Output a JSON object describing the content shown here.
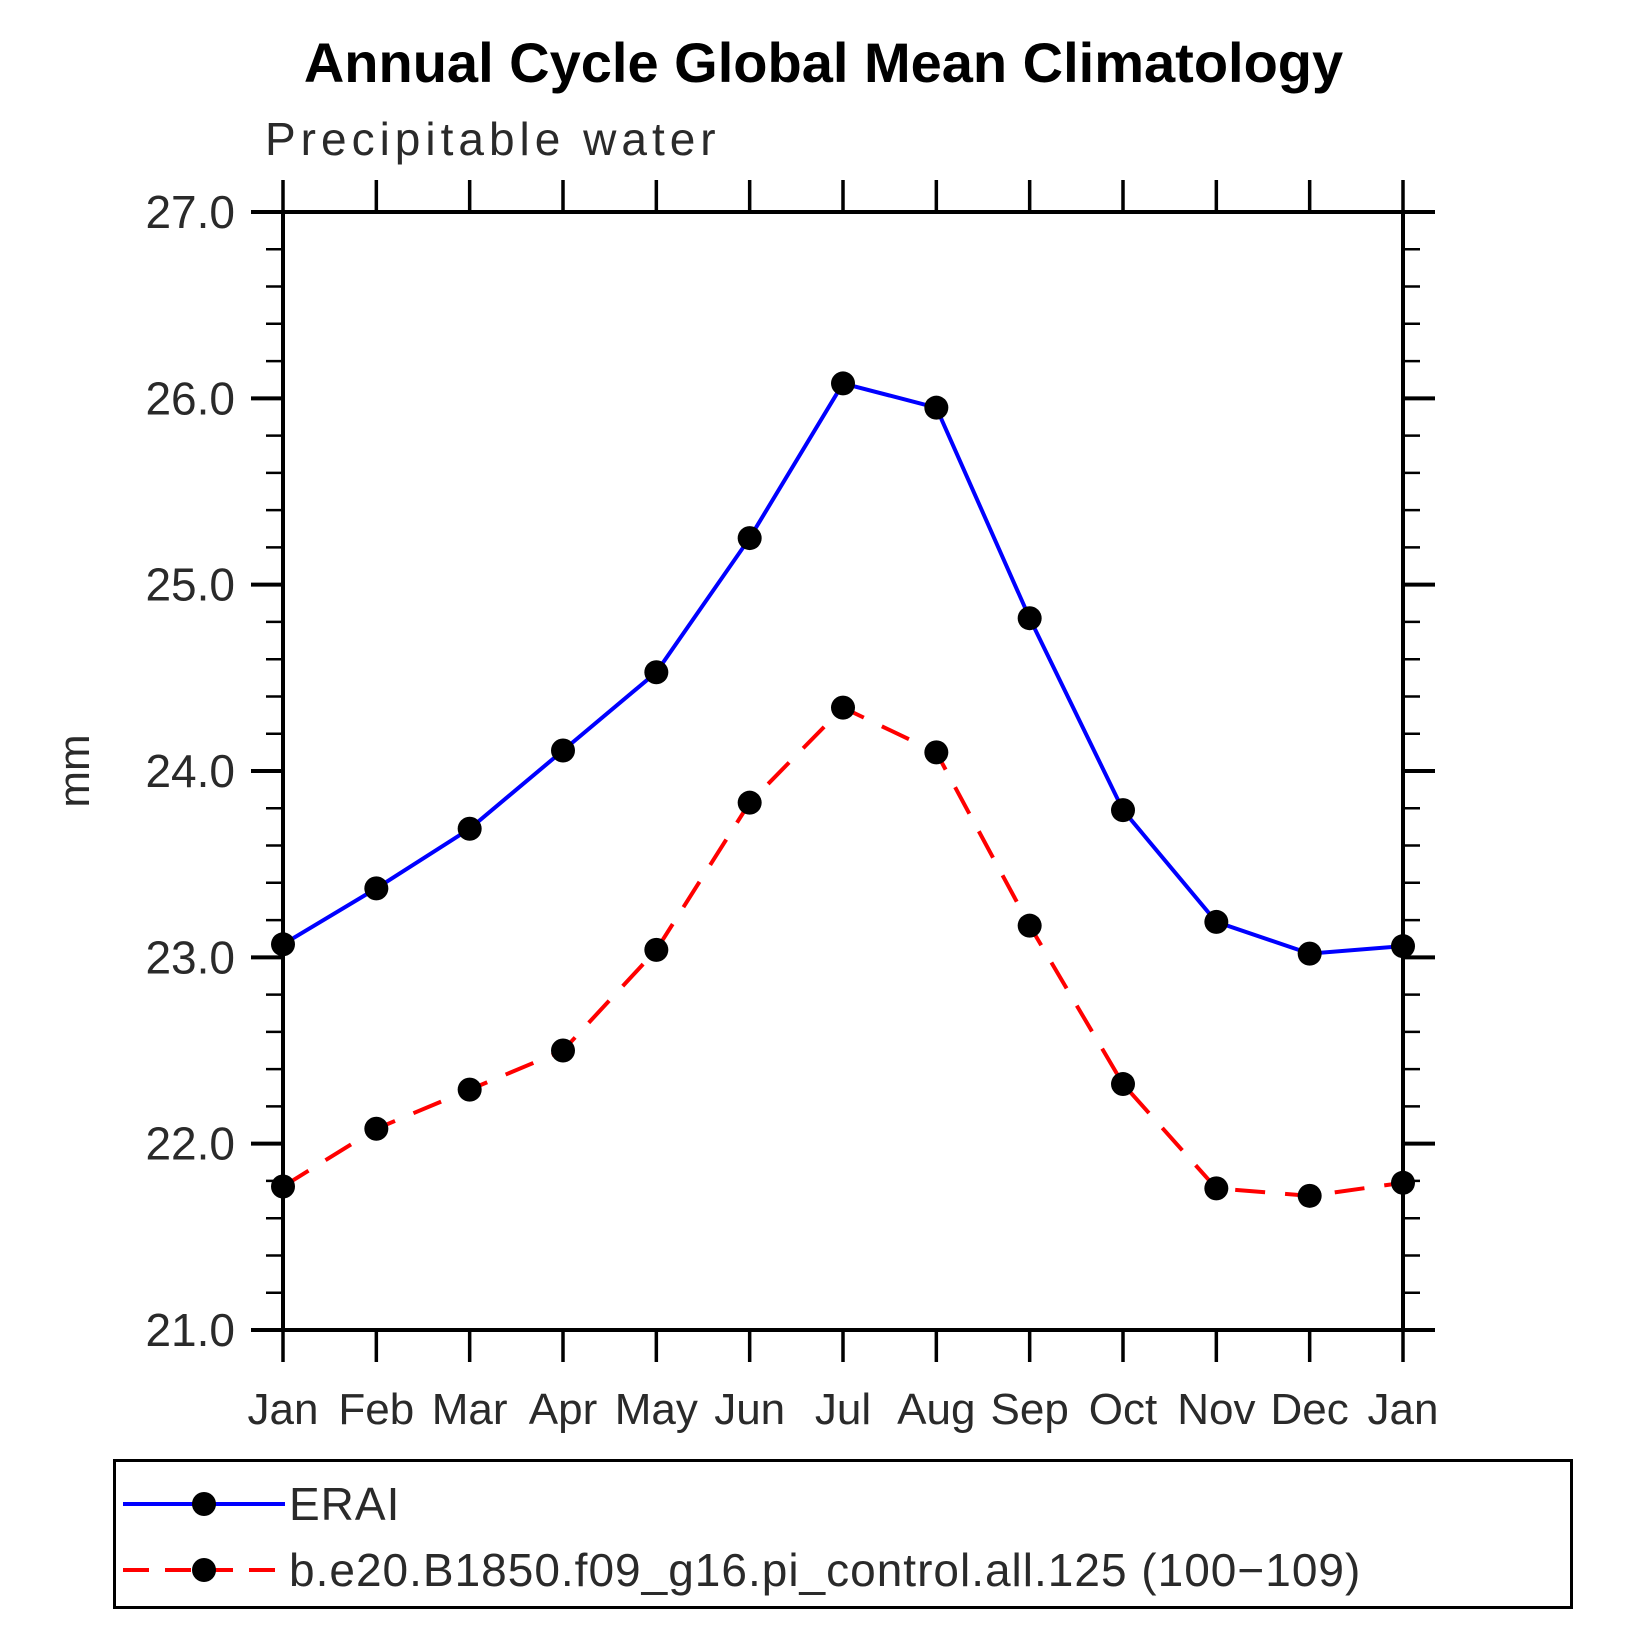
{
  "title": "Annual Cycle Global Mean Climatology",
  "subtitle": "Precipitable water",
  "chart_data": {
    "type": "line",
    "x_categories": [
      "Jan",
      "Feb",
      "Mar",
      "Apr",
      "May",
      "Jun",
      "Jul",
      "Aug",
      "Sep",
      "Oct",
      "Nov",
      "Dec",
      "Jan"
    ],
    "xlabel": "",
    "ylabel": "mm",
    "ylim": [
      21.0,
      27.0
    ],
    "ytick_interval": 1.0,
    "ytick_labels": [
      "21.0",
      "22.0",
      "23.0",
      "24.0",
      "25.0",
      "26.0",
      "27.0"
    ],
    "yminor_interval": 0.2,
    "grid": "off",
    "legend_position": "bottom",
    "frame_color": "#000000",
    "marker": "filled-circle",
    "marker_color": "#000000",
    "series": [
      {
        "name": "ERAI",
        "color": "#0000FF",
        "line_style": "solid",
        "values": [
          23.07,
          23.37,
          23.69,
          24.11,
          24.53,
          25.25,
          26.08,
          25.95,
          24.82,
          23.79,
          23.19,
          23.02,
          23.06
        ]
      },
      {
        "name": "b.e20.B1850.f09_g16.pi_control.all.125 (100−109)",
        "color": "#FF0000",
        "line_style": "dashed",
        "values": [
          21.77,
          22.08,
          22.29,
          22.5,
          23.04,
          23.83,
          24.34,
          24.1,
          23.17,
          22.32,
          21.76,
          21.72,
          21.79
        ]
      }
    ]
  }
}
